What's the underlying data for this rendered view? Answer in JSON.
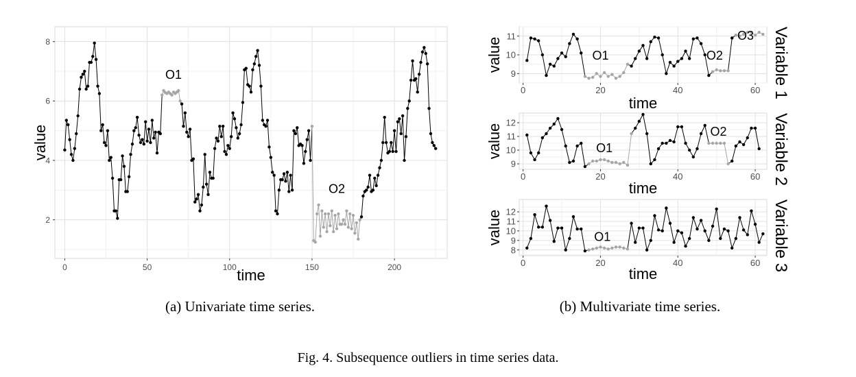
{
  "figure_caption": "Fig. 4.  Subsequence outliers in time series data.",
  "colors": {
    "normal": "#000000",
    "outlier": "#a6a6a6"
  },
  "chart_data": [
    {
      "type": "line",
      "panel": "a",
      "caption": "(a) Univariate time series.",
      "xlabel": "time",
      "ylabel": "value",
      "xlim": [
        -6,
        232
      ],
      "ylim": [
        0.7,
        8.5
      ],
      "xticks": [
        0,
        50,
        100,
        150,
        200
      ],
      "yticks": [
        2,
        4,
        6,
        8
      ],
      "grid": true,
      "y": [
        4.35,
        5.35,
        5.2,
        4.7,
        4.2,
        4.0,
        4.4,
        4.9,
        5.5,
        6.4,
        6.8,
        6.9,
        7.0,
        6.4,
        6.5,
        7.3,
        7.3,
        7.5,
        7.95,
        7.4,
        6.5,
        6.25,
        5.0,
        5.2,
        4.6,
        4.5,
        5.0,
        4.0,
        4.1,
        3.4,
        2.3,
        2.3,
        2.05,
        3.35,
        3.35,
        4.15,
        3.8,
        2.95,
        2.95,
        3.45,
        4.2,
        4.55,
        5.0,
        5.1,
        5.45,
        4.85,
        4.6,
        4.7,
        4.55,
        5.3,
        4.65,
        5.05,
        4.6,
        5.35,
        4.75,
        4.95,
        4.25,
        4.95,
        4.9,
        6.2,
        6.35,
        6.28,
        6.25,
        6.3,
        6.25,
        6.2,
        6.3,
        6.25,
        6.3,
        6.35,
        6.0,
        5.9,
        5.15,
        5.6,
        4.95,
        4.8,
        5.05,
        4.0,
        4.05,
        2.6,
        2.7,
        2.85,
        2.3,
        2.5,
        3.1,
        4.2,
        3.2,
        2.85,
        3.6,
        3.4,
        3.4,
        4.4,
        4.75,
        4.65,
        5.15,
        4.8,
        5.15,
        4.3,
        4.2,
        4.5,
        4.4,
        4.8,
        5.6,
        5.4,
        5.1,
        4.75,
        4.9,
        5.2,
        5.95,
        7.05,
        7.1,
        6.55,
        6.5,
        6.3,
        7.05,
        7.25,
        7.5,
        7.7,
        7.2,
        6.5,
        5.35,
        5.2,
        5.15,
        5.35,
        4.45,
        4.1,
        3.6,
        3.5,
        2.3,
        2.2,
        3.0,
        3.35,
        3.35,
        3.55,
        3.3,
        3.6,
        2.95,
        3.5,
        3.0,
        5.0,
        4.9,
        5.1,
        4.5,
        4.55,
        4.5,
        3.9,
        4.3,
        4.7,
        5.0,
        4.0,
        5.15,
        1.3,
        1.25,
        2.2,
        2.5,
        1.45,
        2.3,
        1.75,
        2.2,
        1.6,
        2.2,
        1.8,
        2.3,
        1.6,
        2.15,
        1.7,
        2.2,
        1.85,
        1.85,
        2.0,
        1.85,
        2.3,
        1.75,
        2.2,
        1.7,
        2.15,
        1.55,
        1.9,
        1.35,
        2.0,
        2.1,
        2.8,
        2.95,
        3.0,
        3.1,
        3.5,
        2.95,
        3.0,
        3.4,
        3.15,
        3.5,
        3.75,
        4.0,
        4.6,
        5.45,
        4.6,
        4.25,
        4.3,
        4.6,
        4.3,
        5.0,
        4.3,
        5.3,
        5.4,
        4.9,
        5.5,
        4.0,
        4.8,
        5.75,
        6.0,
        6.7,
        7.35,
        6.7,
        6.75,
        6.3,
        6.9,
        7.3,
        7.65,
        7.8,
        7.6,
        7.25,
        5.75,
        4.9,
        4.6,
        4.5,
        4.4
      ],
      "outliers": [
        [
          59,
          70
        ],
        [
          150,
          179
        ]
      ],
      "annotations": [
        {
          "label": "O1",
          "x": 66,
          "y": 6.75
        },
        {
          "label": "O2",
          "x": 165,
          "y": 2.9
        }
      ]
    },
    {
      "type": "line",
      "panel": "b1",
      "strip_label": "Variable 1",
      "xlabel": "time",
      "ylabel": "value",
      "xlim": [
        -1,
        63
      ],
      "ylim": [
        8.5,
        11.5
      ],
      "xticks": [
        0,
        20,
        40,
        60
      ],
      "yticks": [
        9,
        10,
        11
      ],
      "grid": true,
      "y": [
        9.7,
        10.9,
        10.85,
        10.75,
        10.0,
        8.9,
        9.5,
        9.4,
        9.8,
        10.1,
        9.9,
        10.6,
        11.1,
        10.85,
        10.1,
        8.85,
        8.75,
        8.8,
        9.0,
        8.85,
        9.05,
        8.85,
        8.95,
        8.75,
        8.85,
        9.05,
        9.5,
        9.4,
        9.8,
        10.2,
        10.5,
        9.8,
        10.7,
        10.95,
        10.9,
        10.0,
        9.0,
        9.6,
        9.4,
        9.65,
        9.8,
        10.2,
        9.8,
        10.85,
        10.9,
        10.6,
        10.0,
        8.9,
        9.1,
        9.2,
        9.15,
        9.15,
        9.15,
        10.9,
        11.05,
        11.0,
        11.1,
        11.2,
        11.2,
        11.05,
        11.2,
        11.1
      ],
      "outliers": [
        [
          15,
          26
        ],
        [
          48,
          52
        ],
        [
          54,
          61
        ]
      ],
      "annotations": [
        {
          "label": "O1",
          "x": 20,
          "y": 9.75
        },
        {
          "label": "O2",
          "x": 49.5,
          "y": 9.75
        },
        {
          "label": "O3",
          "x": 57.5,
          "y": 10.8
        }
      ]
    },
    {
      "type": "line",
      "panel": "b2",
      "strip_label": "Variable 2",
      "xlabel": "time",
      "ylabel": "value",
      "xlim": [
        -1,
        63
      ],
      "ylim": [
        8.6,
        12.7
      ],
      "xticks": [
        0,
        20,
        40,
        60
      ],
      "yticks": [
        9,
        10,
        11,
        12
      ],
      "grid": true,
      "y": [
        11.1,
        9.8,
        9.3,
        9.8,
        10.9,
        11.2,
        11.6,
        11.9,
        12.3,
        11.5,
        10.3,
        9.1,
        9.2,
        10.3,
        10.5,
        8.8,
        9.0,
        9.2,
        9.2,
        9.3,
        9.3,
        9.2,
        9.1,
        9.1,
        9.0,
        9.1,
        8.9,
        11.2,
        11.6,
        12.1,
        12.6,
        11.2,
        9.0,
        9.3,
        10.1,
        10.5,
        10.5,
        10.7,
        10.6,
        11.7,
        11.7,
        10.5,
        10.0,
        9.5,
        10.1,
        11.2,
        11.8,
        10.5,
        10.5,
        10.5,
        10.5,
        10.5,
        9.0,
        9.2,
        10.3,
        10.6,
        10.4,
        10.9,
        11.6,
        11.6,
        10.1
      ],
      "outliers": [
        [
          16,
          27
        ],
        [
          47,
          52
        ]
      ],
      "annotations": [
        {
          "label": "O1",
          "x": 21,
          "y": 9.85
        },
        {
          "label": "O2",
          "x": 50.5,
          "y": 11.05
        }
      ]
    },
    {
      "type": "line",
      "panel": "b3",
      "strip_label": "Variable 3",
      "xlabel": "time",
      "ylabel": "value",
      "xlim": [
        -1,
        63
      ],
      "ylim": [
        7.4,
        13.3
      ],
      "xticks": [
        0,
        20,
        40,
        60
      ],
      "yticks": [
        8,
        9,
        10,
        11,
        12
      ],
      "grid": true,
      "y": [
        8.2,
        9.2,
        11.7,
        10.4,
        10.4,
        12.6,
        11.1,
        8.9,
        10.3,
        10.3,
        8.0,
        9.2,
        11.5,
        10.2,
        10.2,
        7.9,
        8.0,
        8.1,
        8.2,
        8.3,
        8.2,
        8.1,
        8.2,
        8.3,
        8.3,
        8.2,
        8.1,
        10.8,
        8.8,
        10.3,
        10.3,
        8.0,
        9.0,
        11.6,
        10.1,
        10.0,
        12.4,
        10.8,
        8.8,
        10.0,
        9.8,
        8.4,
        9.2,
        11.4,
        10.2,
        11.1,
        10.0,
        9.0,
        10.5,
        12.3,
        9.2,
        10.2,
        10.0,
        8.2,
        9.2,
        11.4,
        10.1,
        9.6,
        12.1,
        10.7,
        8.8,
        9.7
      ],
      "outliers": [
        [
          16,
          26
        ]
      ],
      "annotations": [
        {
          "label": "O1",
          "x": 20.5,
          "y": 8.95
        }
      ]
    }
  ]
}
